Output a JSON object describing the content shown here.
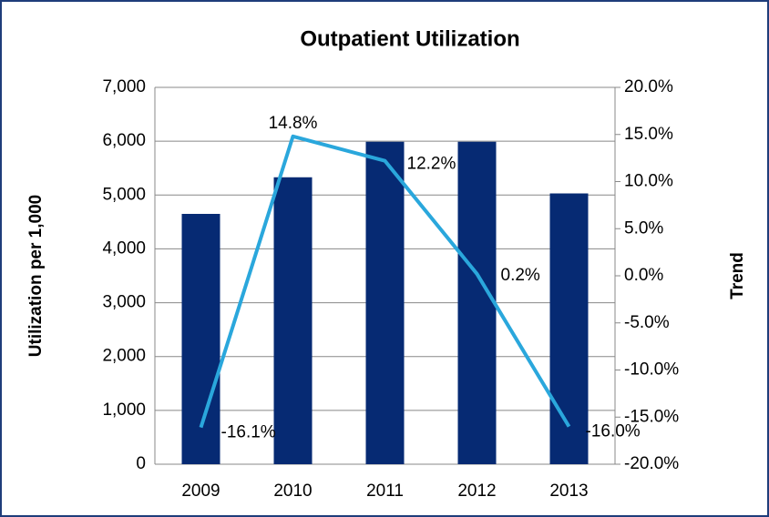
{
  "chart_data": {
    "type": "bar-line",
    "title": "Outpatient Utilization",
    "y_label": "Utilization per 1,000",
    "y2_label": "Trend",
    "categories": [
      "2009",
      "2010",
      "2011",
      "2012",
      "2013"
    ],
    "series": [
      {
        "name": "Utilization per 1,000",
        "type": "bar",
        "color": "#062a73",
        "values": [
          4650,
          5330,
          5990,
          5990,
          5030
        ]
      },
      {
        "name": "Trend",
        "type": "line",
        "axis": "y2",
        "color": "#2aa7dc",
        "values": [
          -16.1,
          14.8,
          12.2,
          0.2,
          -16.0
        ],
        "value_labels": [
          "-16.1%",
          "14.8%",
          "12.2%",
          "0.2%",
          "-16.0%"
        ]
      }
    ],
    "ylim": [
      0,
      7000
    ],
    "yticks": [
      0,
      {
        "value": 1000,
        "label": "1,000"
      },
      {
        "value": 2000,
        "label": "2,000"
      },
      {
        "value": 3000,
        "label": "3,000"
      },
      {
        "value": 4000,
        "label": "4,000"
      },
      {
        "value": 5000,
        "label": "5,000"
      },
      {
        "value": 6000,
        "label": "6,000"
      },
      {
        "value": 7000,
        "label": "7,000"
      }
    ],
    "y2lim": [
      -20,
      20
    ],
    "y2ticks": [
      {
        "value": -20,
        "label": "-20.0%"
      },
      {
        "value": -15,
        "label": "-15.0%"
      },
      {
        "value": -10,
        "label": "-10.0%"
      },
      {
        "value": -5,
        "label": "-5.0%"
      },
      {
        "value": 0,
        "label": "0.0%"
      },
      {
        "value": 5,
        "label": "5.0%"
      },
      {
        "value": 10,
        "label": "10.0%"
      },
      {
        "value": 15,
        "label": "15.0%"
      },
      {
        "value": 20,
        "label": "20.0%"
      }
    ],
    "grid": true
  }
}
